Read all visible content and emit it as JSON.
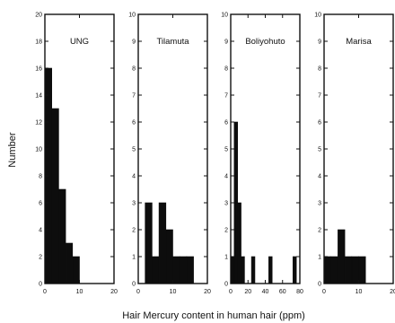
{
  "chart_data": {
    "type": "bar",
    "ylabel": "Number",
    "xlabel": "Hair Mercury content in human hair (ppm)",
    "panels": [
      {
        "title": "UNG",
        "xlim": [
          0,
          20
        ],
        "ylim": [
          0,
          20
        ],
        "x_ticks": [
          0,
          10,
          20
        ],
        "y_ticks": [
          0,
          2,
          4,
          6,
          8,
          10,
          12,
          14,
          16,
          18,
          20
        ],
        "bins": [
          [
            0,
            2,
            16
          ],
          [
            2,
            4,
            13
          ],
          [
            4,
            6,
            7
          ],
          [
            6,
            8,
            3
          ],
          [
            8,
            10,
            2
          ]
        ]
      },
      {
        "title": "Tilamuta",
        "xlim": [
          0,
          20
        ],
        "ylim": [
          0,
          10
        ],
        "x_ticks": [
          0,
          10,
          20
        ],
        "y_ticks": [
          0,
          1,
          2,
          3,
          4,
          5,
          6,
          7,
          8,
          9,
          10
        ],
        "bins": [
          [
            2,
            4,
            3
          ],
          [
            4,
            6,
            1
          ],
          [
            6,
            8,
            3
          ],
          [
            8,
            10,
            2
          ],
          [
            10,
            12,
            1
          ],
          [
            12,
            14,
            1
          ],
          [
            14,
            16,
            1
          ]
        ]
      },
      {
        "title": "Boliyohuto",
        "xlim": [
          0,
          80
        ],
        "ylim": [
          0,
          10
        ],
        "x_ticks": [
          0,
          20,
          40,
          60,
          80
        ],
        "y_ticks": [
          0,
          1,
          2,
          3,
          4,
          5,
          6,
          7,
          8,
          9,
          10
        ],
        "bins": [
          [
            0,
            4,
            1
          ],
          [
            4,
            8,
            6
          ],
          [
            8,
            12,
            3
          ],
          [
            12,
            16,
            1
          ],
          [
            24,
            28,
            1
          ],
          [
            44,
            48,
            1
          ],
          [
            72,
            76,
            1
          ]
        ]
      },
      {
        "title": "Marisa",
        "xlim": [
          0,
          20
        ],
        "ylim": [
          0,
          10
        ],
        "x_ticks": [
          0,
          10,
          20
        ],
        "y_ticks": [
          0,
          1,
          2,
          3,
          4,
          5,
          6,
          7,
          8,
          9,
          10
        ],
        "bins": [
          [
            0,
            2,
            1
          ],
          [
            2,
            4,
            1
          ],
          [
            4,
            6,
            2
          ],
          [
            6,
            8,
            1
          ],
          [
            8,
            10,
            1
          ],
          [
            10,
            12,
            1
          ]
        ]
      }
    ]
  }
}
